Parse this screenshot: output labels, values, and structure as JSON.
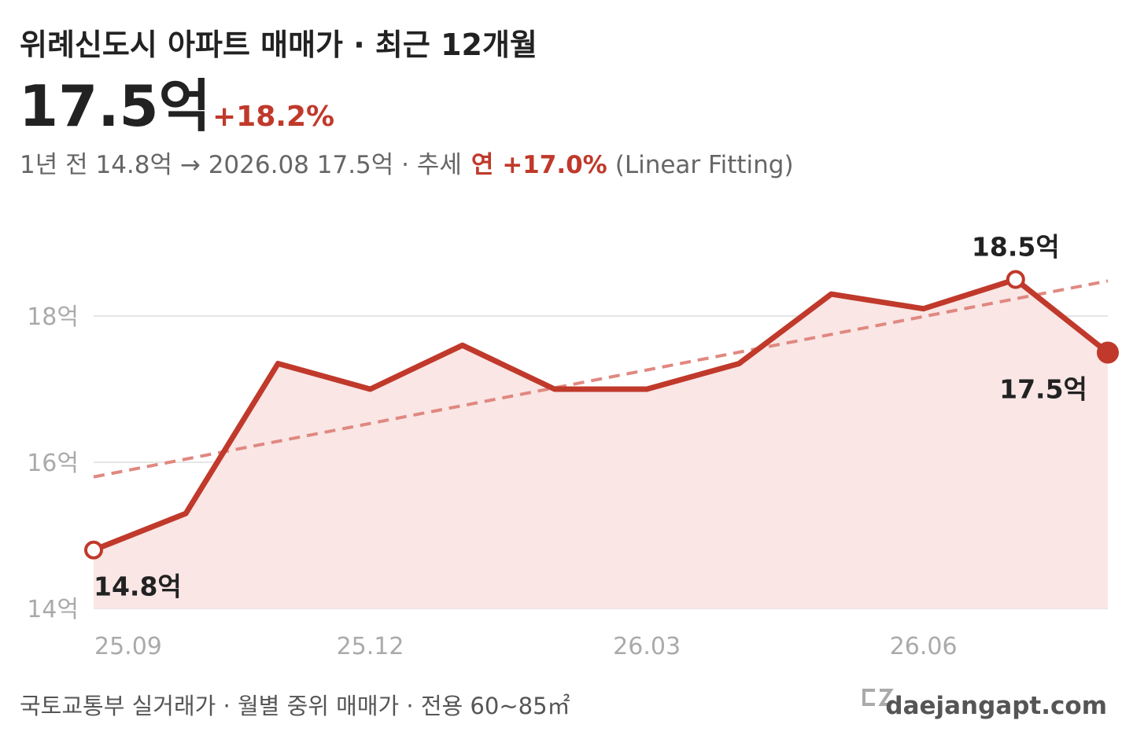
{
  "chart_data": {
    "type": "line",
    "title": "위례신도시 아파트 매매가 · 최근 12개월",
    "headline": "17.5억",
    "change": "+18.2%",
    "subtitle": "1년 전 14.8억 → 2026.08 17.5억 · 추세",
    "trend_rate": "연 +17.0%",
    "trend_method": "(Linear Fitting)",
    "categories": [
      "25.09",
      null,
      null,
      "25.12",
      null,
      null,
      "26.03",
      null,
      null,
      "26.06",
      null,
      null
    ],
    "values": [
      14.8,
      15.3,
      17.35,
      17.0,
      17.6,
      17.0,
      17.0,
      17.35,
      18.3,
      18.1,
      18.5,
      17.5
    ],
    "value_labels": [
      "14.8억",
      null,
      null,
      null,
      null,
      null,
      null,
      null,
      null,
      null,
      "18.5억",
      "17.5억"
    ],
    "color": "#c0392b",
    "fill_color": "#f9e6e5",
    "trend": {
      "values": [
        15.8,
        18.48
      ],
      "color": "#e08880"
    },
    "ylim": [
      14,
      19
    ],
    "yticks": [
      {
        "value": 14,
        "label": "14억"
      },
      {
        "value": 16,
        "label": "16억"
      },
      {
        "value": 18,
        "label": "18억"
      }
    ],
    "grid": true,
    "source": "국토교통부 실거래가 · 월별 중위 매매가 · 전용 60~85㎡",
    "brand": "daejangapt.com"
  }
}
